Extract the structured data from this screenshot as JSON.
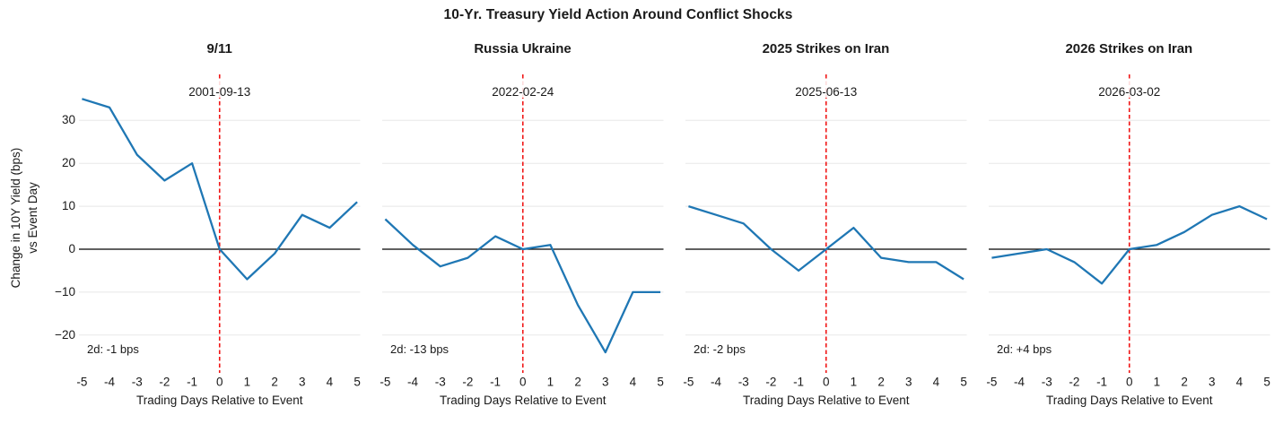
{
  "figure_title": "10-Yr. Treasury Yield Action Around Conflict Shocks",
  "y_axis": {
    "label_line1": "Change in 10Y Yield (bps)",
    "label_line2": "vs Event Day",
    "tick_labels": [
      "30",
      "20",
      "10",
      "0",
      "−10",
      "−20"
    ],
    "tick_values": [
      30,
      20,
      10,
      0,
      -10,
      -20
    ]
  },
  "x_axis": {
    "label": "Trading Days Relative to Event",
    "tick_labels": [
      "-5",
      "-4",
      "-3",
      "-2",
      "-1",
      "0",
      "1",
      "2",
      "3",
      "4",
      "5"
    ],
    "tick_values": [
      -5,
      -4,
      -3,
      -2,
      -1,
      0,
      1,
      2,
      3,
      4,
      5
    ]
  },
  "colors": {
    "line": "#1f77b4",
    "event_line": "#f01515",
    "zero_line": "#000000",
    "grid": "#e8e8e8",
    "text": "#1a1a1a",
    "background": "#ffffff"
  },
  "chart_data": [
    {
      "type": "line",
      "title": "9/11",
      "event_date": "2001-09-13",
      "annotation": "2d: -1 bps",
      "x": [
        -5,
        -4,
        -3,
        -2,
        -1,
        0,
        1,
        2,
        3,
        4,
        5
      ],
      "values": [
        35,
        33,
        22,
        16,
        20,
        0,
        -7,
        -1,
        8,
        5,
        11
      ],
      "xlabel": "Trading Days Relative to Event",
      "xlim": [
        -5.1,
        5.1
      ],
      "ylim": [
        -28.8,
        40.7
      ],
      "grid": "horizontal-only",
      "event_line_x": 0,
      "zero_line_y": 0
    },
    {
      "type": "line",
      "title": "Russia Ukraine",
      "event_date": "2022-02-24",
      "annotation": "2d: -13 bps",
      "x": [
        -5,
        -4,
        -3,
        -2,
        -1,
        0,
        1,
        2,
        3,
        4,
        5
      ],
      "values": [
        7,
        1,
        -4,
        -2,
        3,
        0,
        1,
        -13,
        -24,
        -10,
        -10
      ],
      "xlabel": "Trading Days Relative to Event",
      "xlim": [
        -5.1,
        5.1
      ],
      "ylim": [
        -28.8,
        40.7
      ],
      "grid": "horizontal-only",
      "event_line_x": 0,
      "zero_line_y": 0
    },
    {
      "type": "line",
      "title": "2025 Strikes on Iran",
      "event_date": "2025-06-13",
      "annotation": "2d: -2 bps",
      "x": [
        -5,
        -4,
        -3,
        -2,
        -1,
        0,
        1,
        2,
        3,
        4,
        5
      ],
      "values": [
        10,
        8,
        6,
        0,
        -5,
        0,
        5,
        -2,
        -3,
        -3,
        -7
      ],
      "xlabel": "Trading Days Relative to Event",
      "xlim": [
        -5.1,
        5.1
      ],
      "ylim": [
        -28.8,
        40.7
      ],
      "grid": "horizontal-only",
      "event_line_x": 0,
      "zero_line_y": 0
    },
    {
      "type": "line",
      "title": "2026 Strikes on Iran",
      "event_date": "2026-03-02",
      "annotation": "2d: +4 bps",
      "x": [
        -5,
        -4,
        -3,
        -2,
        -1,
        0,
        1,
        2,
        3,
        4,
        5
      ],
      "values": [
        -2,
        -1,
        0,
        -3,
        -8,
        0,
        1,
        4,
        8,
        10,
        7
      ],
      "xlabel": "Trading Days Relative to Event",
      "xlim": [
        -5.1,
        5.1
      ],
      "ylim": [
        -28.8,
        40.7
      ],
      "grid": "horizontal-only",
      "event_line_x": 0,
      "zero_line_y": 0
    }
  ]
}
